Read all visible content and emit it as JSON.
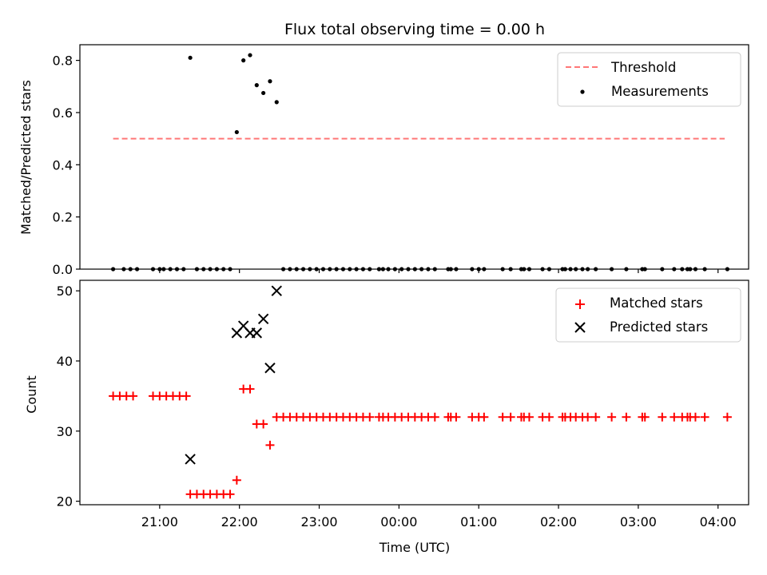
{
  "chart_data": [
    {
      "type": "scatter",
      "title": "Flux total observing time = 0.00 h",
      "ylabel": "Matched/Predicted stars",
      "ylim": [
        0,
        0.86
      ],
      "yticks": [
        0.0,
        0.2,
        0.4,
        0.6,
        0.8
      ],
      "ytick_labels": [
        "0.0",
        "0.2",
        "0.4",
        "0.6",
        "0.8"
      ],
      "legend_position": "top-right",
      "threshold": {
        "name": "Threshold",
        "value": 0.5,
        "x_range": [
          "20:25",
          "04:05"
        ],
        "color": "#ff7777",
        "style": "dashed"
      },
      "series": [
        {
          "name": "Measurements",
          "marker": "dot",
          "color": "#000000",
          "points": [
            [
              "20:25",
              0
            ],
            [
              "20:33",
              0
            ],
            [
              "20:38",
              0
            ],
            [
              "20:43",
              0
            ],
            [
              "20:55",
              0
            ],
            [
              "21:00",
              0
            ],
            [
              "21:03",
              0
            ],
            [
              "21:08",
              0
            ],
            [
              "21:13",
              0
            ],
            [
              "21:18",
              0
            ],
            [
              "21:23",
              0.81
            ],
            [
              "21:28",
              0
            ],
            [
              "21:33",
              0
            ],
            [
              "21:38",
              0
            ],
            [
              "21:43",
              0
            ],
            [
              "21:48",
              0
            ],
            [
              "21:53",
              0
            ],
            [
              "21:58",
              0.525
            ],
            [
              "22:03",
              0.8
            ],
            [
              "22:08",
              0.82
            ],
            [
              "22:13",
              0.705
            ],
            [
              "22:18",
              0.675
            ],
            [
              "22:23",
              0.72
            ],
            [
              "22:28",
              0.64
            ],
            [
              "22:33",
              0
            ],
            [
              "22:38",
              0
            ],
            [
              "22:43",
              0
            ],
            [
              "22:48",
              0
            ],
            [
              "22:53",
              0
            ],
            [
              "22:58",
              0
            ],
            [
              "23:03",
              0
            ],
            [
              "23:08",
              0
            ],
            [
              "23:13",
              0
            ],
            [
              "23:18",
              0
            ],
            [
              "23:23",
              0
            ],
            [
              "23:28",
              0
            ],
            [
              "23:33",
              0
            ],
            [
              "23:38",
              0
            ],
            [
              "23:45",
              0
            ],
            [
              "23:48",
              0
            ],
            [
              "23:52",
              0
            ],
            [
              "23:57",
              0
            ],
            [
              "00:02",
              0
            ],
            [
              "00:07",
              0
            ],
            [
              "00:12",
              0
            ],
            [
              "00:17",
              0
            ],
            [
              "00:22",
              0
            ],
            [
              "00:27",
              0
            ],
            [
              "00:37",
              0
            ],
            [
              "00:39",
              0
            ],
            [
              "00:43",
              0
            ],
            [
              "00:55",
              0
            ],
            [
              "01:00",
              0
            ],
            [
              "01:04",
              0
            ],
            [
              "01:18",
              0
            ],
            [
              "01:24",
              0
            ],
            [
              "01:32",
              0
            ],
            [
              "01:34",
              0
            ],
            [
              "01:38",
              0
            ],
            [
              "01:48",
              0
            ],
            [
              "01:53",
              0
            ],
            [
              "02:03",
              0
            ],
            [
              "02:05",
              0
            ],
            [
              "02:09",
              0
            ],
            [
              "02:13",
              0
            ],
            [
              "02:18",
              0
            ],
            [
              "02:22",
              0
            ],
            [
              "02:28",
              0
            ],
            [
              "02:40",
              0
            ],
            [
              "02:51",
              0
            ],
            [
              "03:03",
              0
            ],
            [
              "03:05",
              0
            ],
            [
              "03:18",
              0
            ],
            [
              "03:27",
              0
            ],
            [
              "03:33",
              0
            ],
            [
              "03:37",
              0
            ],
            [
              "03:39",
              0
            ],
            [
              "03:43",
              0
            ],
            [
              "03:50",
              0
            ],
            [
              "04:07",
              0
            ]
          ]
        }
      ]
    },
    {
      "type": "scatter",
      "xlabel": "Time (UTC)",
      "ylabel": "Count",
      "ylim": [
        19.5,
        51.5
      ],
      "yticks": [
        20,
        30,
        40,
        50
      ],
      "ytick_labels": [
        "20",
        "30",
        "40",
        "50"
      ],
      "xticks": [
        "21:00",
        "22:00",
        "23:00",
        "00:00",
        "01:00",
        "02:00",
        "03:00",
        "04:00"
      ],
      "x_range": [
        "20:00",
        "04:23"
      ],
      "legend_position": "top-right",
      "series": [
        {
          "name": "Matched stars",
          "marker": "plus",
          "color": "#ff0000",
          "points": [
            [
              "20:25",
              35
            ],
            [
              "20:30",
              35
            ],
            [
              "20:35",
              35
            ],
            [
              "20:40",
              35
            ],
            [
              "20:55",
              35
            ],
            [
              "21:00",
              35
            ],
            [
              "21:05",
              35
            ],
            [
              "21:10",
              35
            ],
            [
              "21:15",
              35
            ],
            [
              "21:20",
              35
            ],
            [
              "21:23",
              21
            ],
            [
              "21:28",
              21
            ],
            [
              "21:33",
              21
            ],
            [
              "21:38",
              21
            ],
            [
              "21:43",
              21
            ],
            [
              "21:48",
              21
            ],
            [
              "21:53",
              21
            ],
            [
              "21:58",
              23
            ],
            [
              "22:03",
              36
            ],
            [
              "22:08",
              36
            ],
            [
              "22:13",
              31
            ],
            [
              "22:18",
              31
            ],
            [
              "22:23",
              28
            ],
            [
              "22:28",
              32
            ],
            [
              "22:33",
              32
            ],
            [
              "22:38",
              32
            ],
            [
              "22:43",
              32
            ],
            [
              "22:48",
              32
            ],
            [
              "22:53",
              32
            ],
            [
              "22:58",
              32
            ],
            [
              "23:03",
              32
            ],
            [
              "23:08",
              32
            ],
            [
              "23:13",
              32
            ],
            [
              "23:18",
              32
            ],
            [
              "23:23",
              32
            ],
            [
              "23:28",
              32
            ],
            [
              "23:33",
              32
            ],
            [
              "23:38",
              32
            ],
            [
              "23:45",
              32
            ],
            [
              "23:48",
              32
            ],
            [
              "23:52",
              32
            ],
            [
              "23:57",
              32
            ],
            [
              "00:02",
              32
            ],
            [
              "00:07",
              32
            ],
            [
              "00:12",
              32
            ],
            [
              "00:17",
              32
            ],
            [
              "00:22",
              32
            ],
            [
              "00:27",
              32
            ],
            [
              "00:37",
              32
            ],
            [
              "00:39",
              32
            ],
            [
              "00:43",
              32
            ],
            [
              "00:55",
              32
            ],
            [
              "01:00",
              32
            ],
            [
              "01:04",
              32
            ],
            [
              "01:18",
              32
            ],
            [
              "01:24",
              32
            ],
            [
              "01:32",
              32
            ],
            [
              "01:34",
              32
            ],
            [
              "01:38",
              32
            ],
            [
              "01:48",
              32
            ],
            [
              "01:53",
              32
            ],
            [
              "02:03",
              32
            ],
            [
              "02:05",
              32
            ],
            [
              "02:09",
              32
            ],
            [
              "02:13",
              32
            ],
            [
              "02:18",
              32
            ],
            [
              "02:22",
              32
            ],
            [
              "02:28",
              32
            ],
            [
              "02:40",
              32
            ],
            [
              "02:51",
              32
            ],
            [
              "03:03",
              32
            ],
            [
              "03:05",
              32
            ],
            [
              "03:18",
              32
            ],
            [
              "03:27",
              32
            ],
            [
              "03:33",
              32
            ],
            [
              "03:37",
              32
            ],
            [
              "03:39",
              32
            ],
            [
              "03:43",
              32
            ],
            [
              "03:50",
              32
            ],
            [
              "04:07",
              32
            ]
          ]
        },
        {
          "name": "Predicted stars",
          "marker": "x",
          "color": "#000000",
          "points": [
            [
              "21:23",
              26
            ],
            [
              "21:58",
              44
            ],
            [
              "22:03",
              45
            ],
            [
              "22:08",
              44
            ],
            [
              "22:13",
              44
            ],
            [
              "22:18",
              46
            ],
            [
              "22:23",
              39
            ],
            [
              "22:28",
              50
            ]
          ]
        }
      ]
    }
  ]
}
